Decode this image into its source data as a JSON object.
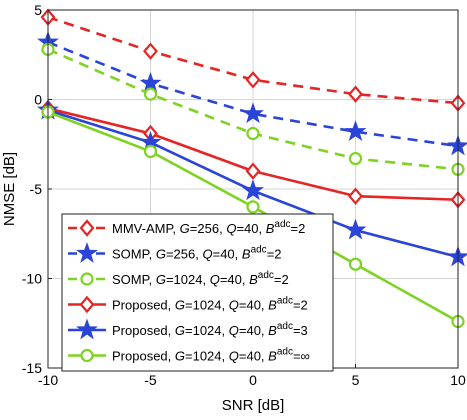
{
  "chart_data": {
    "type": "line",
    "xlabel": "SNR [dB]",
    "ylabel": "NMSE [dB]",
    "xlim": [
      -10,
      10
    ],
    "ylim": [
      -15,
      5
    ],
    "x": [
      -10,
      -5,
      0,
      5,
      10
    ],
    "xticks": [
      "-10",
      "-5",
      "0",
      "5",
      "10"
    ],
    "yticks": [
      "5",
      "0",
      "-5",
      "-10",
      "-15"
    ],
    "grid": true,
    "legend_position": "bottom-left",
    "series": [
      {
        "name": "MMV-AMP, G=256, Q=40, B^adc=2",
        "values": [
          4.6,
          2.7,
          1.1,
          0.3,
          -0.2
        ],
        "color": "#e52424",
        "dash": true,
        "marker": "diamond",
        "legend_parts": [
          {
            "t": "MMV-AMP, "
          },
          {
            "t": "G",
            "i": true
          },
          {
            "t": "=256, "
          },
          {
            "t": "Q",
            "i": true
          },
          {
            "t": "=40, "
          },
          {
            "t": "B",
            "i": true
          },
          {
            "t": "adc",
            "sup": true
          },
          {
            "t": "=2"
          }
        ]
      },
      {
        "name": "SOMP, G=256, Q=40, B^adc=2",
        "values": [
          3.2,
          0.9,
          -0.8,
          -1.8,
          -2.6
        ],
        "color": "#2a44d8",
        "dash": true,
        "marker": "star",
        "legend_parts": [
          {
            "t": "SOMP, "
          },
          {
            "t": "G",
            "i": true
          },
          {
            "t": "=256, "
          },
          {
            "t": "Q",
            "i": true
          },
          {
            "t": "=40, "
          },
          {
            "t": "B",
            "i": true
          },
          {
            "t": "adc",
            "sup": true
          },
          {
            "t": "=2"
          }
        ]
      },
      {
        "name": "SOMP, G=1024, Q=40, B^adc=2",
        "values": [
          2.8,
          0.3,
          -1.9,
          -3.3,
          -3.9
        ],
        "color": "#7ed321",
        "dash": true,
        "marker": "circle",
        "legend_parts": [
          {
            "t": "SOMP, "
          },
          {
            "t": "G",
            "i": true
          },
          {
            "t": "=1024, "
          },
          {
            "t": "Q",
            "i": true
          },
          {
            "t": "=40, "
          },
          {
            "t": "B",
            "i": true
          },
          {
            "t": "adc",
            "sup": true
          },
          {
            "t": "=2"
          }
        ]
      },
      {
        "name": "Proposed, G=1024, Q=40, B^adc=2",
        "values": [
          -0.5,
          -1.9,
          -4.0,
          -5.4,
          -5.6
        ],
        "color": "#e52424",
        "dash": false,
        "marker": "diamond",
        "legend_parts": [
          {
            "t": "Proposed, "
          },
          {
            "t": "G",
            "i": true
          },
          {
            "t": "=1024, "
          },
          {
            "t": "Q",
            "i": true
          },
          {
            "t": "=40, "
          },
          {
            "t": "B",
            "i": true
          },
          {
            "t": "adc",
            "sup": true
          },
          {
            "t": "=2"
          }
        ]
      },
      {
        "name": "Proposed, G=1024, Q=40, B^adc=3",
        "values": [
          -0.6,
          -2.4,
          -5.1,
          -7.3,
          -8.8
        ],
        "color": "#2a44d8",
        "dash": false,
        "marker": "star",
        "legend_parts": [
          {
            "t": "Proposed, "
          },
          {
            "t": "G",
            "i": true
          },
          {
            "t": "=1024, "
          },
          {
            "t": "Q",
            "i": true
          },
          {
            "t": "=40, "
          },
          {
            "t": "B",
            "i": true
          },
          {
            "t": "adc",
            "sup": true
          },
          {
            "t": "=3"
          }
        ]
      },
      {
        "name": "Proposed, G=1024, Q=40, B^adc=∞",
        "values": [
          -0.7,
          -2.9,
          -6.0,
          -9.2,
          -12.4
        ],
        "color": "#7ed321",
        "dash": false,
        "marker": "circle",
        "legend_parts": [
          {
            "t": "Proposed, "
          },
          {
            "t": "G",
            "i": true
          },
          {
            "t": "=1024, "
          },
          {
            "t": "Q",
            "i": true
          },
          {
            "t": "=40, "
          },
          {
            "t": "B",
            "i": true
          },
          {
            "t": "adc",
            "sup": true
          },
          {
            "t": "=∞"
          }
        ]
      }
    ]
  }
}
